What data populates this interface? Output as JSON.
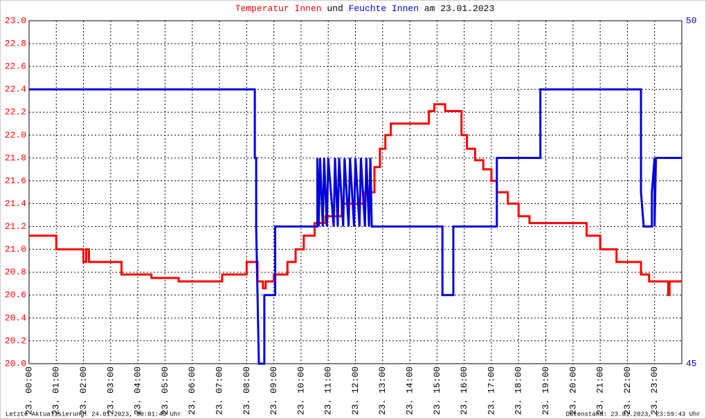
{
  "chart_data": {
    "type": "line",
    "title_joiner": "und",
    "title_date": "am 23.01.2023",
    "footer_left": "Letzte Aktualisierung: 24.01.2023, 00:01:45 Uhr",
    "footer_right": "Datenstand: 23.01.2023, 23:59:43 Uhr",
    "grid": true,
    "xlim": [
      0,
      24
    ],
    "xticks": [
      {
        "value": 0,
        "label": "23. 00:00"
      },
      {
        "value": 1,
        "label": "23. 01:00"
      },
      {
        "value": 2,
        "label": "23. 02:00"
      },
      {
        "value": 3,
        "label": "23. 03:00"
      },
      {
        "value": 4,
        "label": "23. 04:00"
      },
      {
        "value": 5,
        "label": "23. 05:00"
      },
      {
        "value": 6,
        "label": "23. 06:00"
      },
      {
        "value": 7,
        "label": "23. 07:00"
      },
      {
        "value": 8,
        "label": "23. 08:00"
      },
      {
        "value": 9,
        "label": "23. 09:00"
      },
      {
        "value": 10,
        "label": "23. 10:00"
      },
      {
        "value": 11,
        "label": "23. 11:00"
      },
      {
        "value": 12,
        "label": "23. 12:00"
      },
      {
        "value": 13,
        "label": "23. 13:00"
      },
      {
        "value": 14,
        "label": "23. 14:00"
      },
      {
        "value": 15,
        "label": "23. 15:00"
      },
      {
        "value": 16,
        "label": "23. 16:00"
      },
      {
        "value": 17,
        "label": "23. 17:00"
      },
      {
        "value": 18,
        "label": "23. 18:00"
      },
      {
        "value": 19,
        "label": "23. 19:00"
      },
      {
        "value": 20,
        "label": "23. 20:00"
      },
      {
        "value": 21,
        "label": "23. 21:00"
      },
      {
        "value": 22,
        "label": "23. 22:00"
      },
      {
        "value": 23,
        "label": "23. 23:00"
      }
    ],
    "ylim": [
      20,
      23
    ],
    "yticks": [
      {
        "value": 20,
        "label": "20.0"
      },
      20.2,
      20.4,
      20.6,
      20.8,
      {
        "value": 21,
        "label": "21.0"
      },
      21.2,
      21.4,
      21.6,
      21.8,
      {
        "value": 22,
        "label": "22.0"
      },
      22.2,
      22.4,
      22.6,
      22.8,
      {
        "value": 23,
        "label": "23.0"
      }
    ],
    "y2lim": [
      45,
      50
    ],
    "y2ticks": [
      45,
      50
    ],
    "series": [
      {
        "name": "Temperatur Innen",
        "color": "#ff0000",
        "x": [
          0,
          1,
          1,
          2,
          2,
          2.1,
          2.1,
          2.2,
          2.2,
          3.4,
          3.4,
          4.5,
          4.5,
          5.5,
          5.5,
          7.1,
          7.1,
          8.0,
          8.0,
          8.4,
          8.4,
          8.6,
          8.6,
          8.7,
          8.7,
          9.0,
          9.0,
          9.5,
          9.5,
          9.8,
          9.8,
          10.1,
          10.1,
          10.5,
          10.5,
          10.9,
          10.9,
          11.5,
          11.5,
          12.3,
          12.3,
          12.7,
          12.7,
          12.9,
          12.9,
          13.1,
          13.1,
          13.3,
          13.3,
          14.7,
          14.7,
          14.9,
          14.9,
          15.3,
          15.3,
          15.9,
          15.9,
          16.1,
          16.1,
          16.4,
          16.4,
          16.7,
          16.7,
          17.0,
          17.0,
          17.2,
          17.2,
          17.6,
          17.6,
          18.0,
          18.0,
          18.4,
          18.4,
          20.5,
          20.5,
          21.0,
          21.0,
          21.6,
          21.6,
          22.5,
          22.5,
          22.8,
          22.8,
          23.5,
          23.5,
          23.55,
          23.55,
          24
        ],
        "values": [
          21.12,
          21.12,
          21.0,
          21.0,
          20.89,
          20.89,
          21.0,
          21.0,
          20.89,
          20.89,
          20.78,
          20.78,
          20.75,
          20.75,
          20.72,
          20.72,
          20.78,
          20.78,
          20.89,
          20.89,
          20.72,
          20.72,
          20.66,
          20.66,
          20.72,
          20.72,
          20.78,
          20.78,
          20.89,
          20.89,
          21.0,
          21.0,
          21.12,
          21.12,
          21.23,
          21.23,
          21.29,
          21.29,
          21.4,
          21.4,
          21.5,
          21.5,
          21.72,
          21.72,
          21.88,
          21.88,
          22.0,
          22.0,
          22.1,
          22.1,
          22.21,
          22.21,
          22.27,
          22.27,
          22.21,
          22.21,
          22.0,
          22.0,
          21.88,
          21.88,
          21.78,
          21.78,
          21.7,
          21.7,
          21.6,
          21.6,
          21.5,
          21.5,
          21.4,
          21.4,
          21.29,
          21.29,
          21.23,
          21.23,
          21.12,
          21.12,
          21.0,
          21.0,
          20.89,
          20.89,
          20.78,
          20.78,
          20.72,
          20.72,
          20.6,
          20.6,
          20.72,
          20.72
        ]
      },
      {
        "name": "Feuchte Innen",
        "color": "#0000dd",
        "axis": "y2",
        "x": [
          0,
          8.3,
          8.3,
          8.35,
          8.35,
          8.4,
          8.45,
          8.65,
          8.65,
          9.05,
          9.05,
          10.6,
          10.6,
          10.65,
          10.7,
          10.8,
          10.85,
          10.95,
          11.0,
          11.2,
          11.25,
          11.35,
          11.4,
          11.55,
          11.6,
          11.75,
          11.8,
          11.95,
          12.0,
          12.15,
          12.2,
          12.35,
          12.4,
          12.5,
          12.55,
          12.6,
          15.2,
          15.2,
          15.6,
          15.6,
          17.2,
          17.2,
          18.8,
          18.8,
          22.5,
          22.5,
          22.6,
          22.9,
          22.9,
          23.0,
          23.0,
          23.05,
          24
        ],
        "values": [
          49,
          49,
          48,
          48,
          47,
          46,
          45,
          45,
          46,
          46,
          47,
          47,
          48,
          47,
          48,
          47,
          48,
          47,
          48,
          47,
          48,
          47,
          48,
          47,
          48,
          47,
          48,
          47,
          48,
          47,
          48,
          47,
          48,
          47,
          48,
          47,
          47,
          46,
          46,
          47,
          47,
          48,
          48,
          49,
          49,
          47.5,
          47,
          47,
          47.5,
          48,
          47,
          48,
          48
        ]
      }
    ]
  }
}
